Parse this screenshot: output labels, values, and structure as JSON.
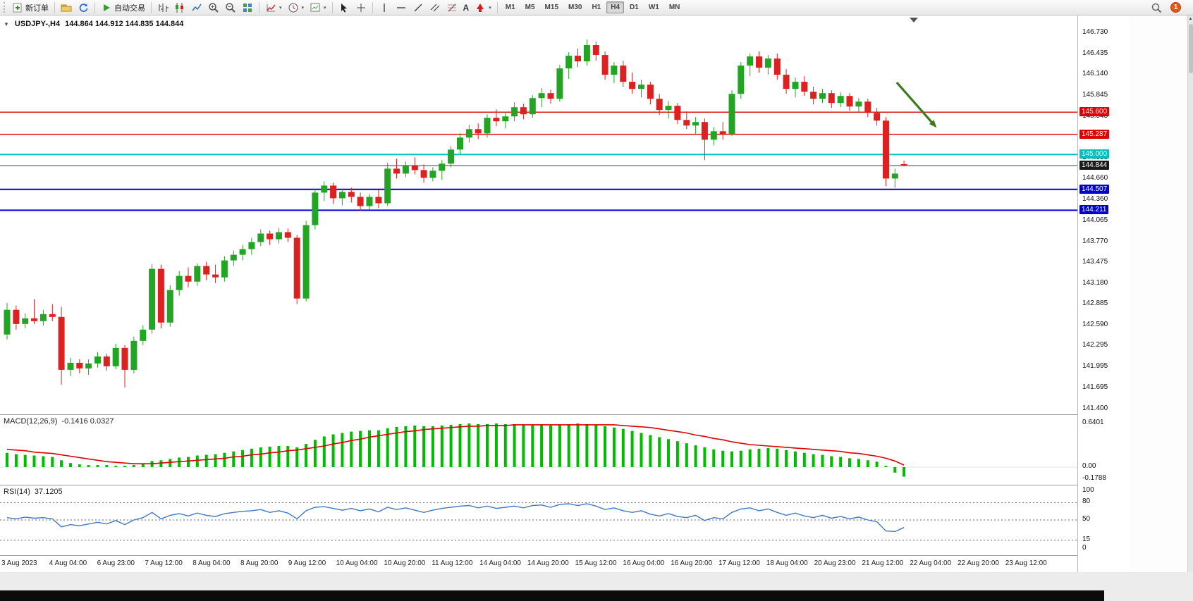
{
  "toolbar": {
    "items": [
      {
        "type": "button",
        "name": "new-order-button",
        "icon": "new-order-icon",
        "label": "新订单"
      },
      {
        "type": "separator"
      },
      {
        "type": "button",
        "name": "charts-profile-button",
        "icon": "profile-icon"
      },
      {
        "type": "button",
        "name": "refresh-button",
        "icon": "refresh-icon"
      },
      {
        "type": "separator"
      },
      {
        "type": "button",
        "name": "autotrading-button",
        "icon": "autotrading-icon",
        "label": "自动交易"
      },
      {
        "type": "separator"
      },
      {
        "type": "button",
        "name": "bar-chart-button",
        "icon": "bar-chart-icon"
      },
      {
        "type": "button",
        "name": "candlestick-chart-button",
        "icon": "candlestick-icon"
      },
      {
        "type": "button",
        "name": "line-chart-button",
        "icon": "line-chart-icon"
      },
      {
        "type": "button",
        "name": "zoom-in-button",
        "icon": "zoom-in-icon"
      },
      {
        "type": "button",
        "name": "zoom-out-button",
        "icon": "zoom-out-icon"
      },
      {
        "type": "button",
        "name": "tile-windows-button",
        "icon": "tile-windows-icon"
      },
      {
        "type": "separator"
      },
      {
        "type": "button",
        "name": "indicators-button",
        "icon": "indicators-icon",
        "dropdown": true
      },
      {
        "type": "button",
        "name": "periods-button",
        "icon": "clock-icon",
        "dropdown": true
      },
      {
        "type": "button",
        "name": "templates-button",
        "icon": "template-icon",
        "dropdown": true
      },
      {
        "type": "separator"
      },
      {
        "type": "button",
        "name": "cursor-button",
        "icon": "cursor-icon"
      },
      {
        "type": "button",
        "name": "crosshair-button",
        "icon": "crosshair-icon"
      },
      {
        "type": "separator"
      },
      {
        "type": "button",
        "name": "vertical-line-button",
        "icon": "vline-icon"
      },
      {
        "type": "button",
        "name": "horizontal-line-button",
        "icon": "hline-icon"
      },
      {
        "type": "button",
        "name": "trendline-button",
        "icon": "trendline-icon"
      },
      {
        "type": "button",
        "name": "channel-button",
        "icon": "channel-icon"
      },
      {
        "type": "button",
        "name": "fibonacci-button",
        "icon": "fibonacci-icon"
      },
      {
        "type": "button",
        "name": "text-button",
        "icon": "text-icon"
      },
      {
        "type": "button",
        "name": "arrows-button",
        "icon": "arrow-tool-icon",
        "dropdown": true
      },
      {
        "type": "separator"
      }
    ],
    "timeframes": [
      "M1",
      "M5",
      "M15",
      "M30",
      "H1",
      "H4",
      "D1",
      "W1",
      "MN"
    ],
    "active_timeframe": "H4",
    "notification_count": "1"
  },
  "chart": {
    "symbol_period": "USDJPY-,H4",
    "ohlc": "144.864 144.912 144.835 144.844"
  },
  "chart_data": {
    "type": "candlestick",
    "symbol": "USDJPY-",
    "timeframe": "H4",
    "colors": {
      "bull": "#22a522",
      "bear": "#dd2020",
      "background": "#ffffff"
    },
    "price_range": {
      "min": 141.4,
      "max": 146.73
    },
    "y_axis_labels": [
      "146.730",
      "146.435",
      "146.140",
      "145.845",
      "145.545",
      "145.250",
      "144.955",
      "144.660",
      "144.360",
      "144.065",
      "143.770",
      "143.475",
      "143.180",
      "142.885",
      "142.590",
      "142.295",
      "141.995",
      "141.695",
      "141.400"
    ],
    "x_axis_labels": [
      "3 Aug 2023",
      "4 Aug 04:00",
      "6 Aug 23:00",
      "7 Aug 12:00",
      "8 Aug 04:00",
      "8 Aug 20:00",
      "9 Aug 12:00",
      "10 Aug 04:00",
      "10 Aug 20:00",
      "11 Aug 12:00",
      "14 Aug 04:00",
      "14 Aug 20:00",
      "15 Aug 12:00",
      "16 Aug 04:00",
      "16 Aug 20:00",
      "17 Aug 12:00",
      "18 Aug 04:00",
      "20 Aug 23:00",
      "21 Aug 12:00",
      "22 Aug 04:00",
      "22 Aug 20:00",
      "23 Aug 12:00"
    ],
    "candles": [
      [
        142.45,
        142.9,
        142.38,
        142.8
      ],
      [
        142.8,
        142.86,
        142.52,
        142.6
      ],
      [
        142.6,
        142.75,
        142.54,
        142.68
      ],
      [
        142.68,
        142.95,
        142.6,
        142.64
      ],
      [
        142.64,
        142.8,
        142.58,
        142.74
      ],
      [
        142.74,
        142.88,
        142.64,
        142.7
      ],
      [
        142.7,
        142.84,
        141.74,
        141.95
      ],
      [
        141.95,
        142.12,
        141.86,
        142.05
      ],
      [
        142.05,
        142.1,
        141.9,
        141.97
      ],
      [
        141.97,
        142.1,
        141.88,
        142.04
      ],
      [
        142.04,
        142.2,
        141.98,
        142.14
      ],
      [
        142.14,
        142.18,
        141.94,
        142.0
      ],
      [
        142.0,
        142.32,
        141.96,
        142.26
      ],
      [
        142.26,
        142.3,
        141.7,
        141.95
      ],
      [
        141.95,
        142.42,
        141.9,
        142.36
      ],
      [
        142.36,
        142.58,
        142.3,
        142.52
      ],
      [
        142.52,
        143.45,
        142.46,
        143.38
      ],
      [
        143.38,
        143.44,
        142.54,
        142.62
      ],
      [
        142.62,
        143.15,
        142.56,
        143.08
      ],
      [
        143.08,
        143.35,
        143.0,
        143.28
      ],
      [
        143.28,
        143.4,
        143.12,
        143.2
      ],
      [
        143.2,
        143.46,
        143.14,
        143.42
      ],
      [
        143.42,
        143.48,
        143.22,
        143.3
      ],
      [
        143.3,
        143.44,
        143.18,
        143.26
      ],
      [
        143.26,
        143.56,
        143.2,
        143.5
      ],
      [
        143.5,
        143.64,
        143.42,
        143.58
      ],
      [
        143.58,
        143.72,
        143.5,
        143.66
      ],
      [
        143.66,
        143.82,
        143.58,
        143.76
      ],
      [
        143.76,
        143.94,
        143.7,
        143.88
      ],
      [
        143.88,
        143.92,
        143.72,
        143.8
      ],
      [
        143.8,
        143.96,
        143.74,
        143.9
      ],
      [
        143.9,
        143.95,
        143.76,
        143.82
      ],
      [
        143.82,
        143.86,
        142.88,
        142.96
      ],
      [
        142.96,
        144.06,
        142.92,
        144.0
      ],
      [
        144.0,
        144.52,
        143.94,
        144.46
      ],
      [
        144.46,
        144.62,
        144.34,
        144.56
      ],
      [
        144.56,
        144.6,
        144.3,
        144.38
      ],
      [
        144.38,
        144.52,
        144.28,
        144.47
      ],
      [
        144.47,
        144.53,
        144.32,
        144.4
      ],
      [
        144.4,
        144.46,
        144.2,
        144.27
      ],
      [
        144.27,
        144.44,
        144.22,
        144.4
      ],
      [
        144.4,
        144.5,
        144.24,
        144.31
      ],
      [
        144.31,
        144.88,
        144.27,
        144.8
      ],
      [
        144.8,
        144.94,
        144.66,
        144.73
      ],
      [
        144.73,
        144.9,
        144.68,
        144.84
      ],
      [
        144.84,
        144.96,
        144.72,
        144.78
      ],
      [
        144.78,
        144.86,
        144.6,
        144.67
      ],
      [
        144.67,
        144.82,
        144.62,
        144.77
      ],
      [
        144.77,
        144.92,
        144.64,
        144.87
      ],
      [
        144.87,
        145.12,
        144.82,
        145.07
      ],
      [
        145.07,
        145.3,
        145.0,
        145.24
      ],
      [
        145.24,
        145.42,
        145.17,
        145.36
      ],
      [
        145.36,
        145.44,
        145.22,
        145.3
      ],
      [
        145.3,
        145.57,
        145.24,
        145.52
      ],
      [
        145.52,
        145.64,
        145.4,
        145.47
      ],
      [
        145.47,
        145.6,
        145.37,
        145.54
      ],
      [
        145.54,
        145.74,
        145.47,
        145.67
      ],
      [
        145.67,
        145.72,
        145.5,
        145.57
      ],
      [
        145.57,
        145.84,
        145.52,
        145.8
      ],
      [
        145.8,
        145.94,
        145.67,
        145.87
      ],
      [
        145.87,
        145.92,
        145.72,
        145.79
      ],
      [
        145.79,
        146.27,
        145.75,
        146.22
      ],
      [
        146.22,
        146.45,
        146.07,
        146.4
      ],
      [
        146.4,
        146.5,
        146.24,
        146.32
      ],
      [
        146.32,
        146.63,
        146.26,
        146.55
      ],
      [
        146.55,
        146.6,
        146.33,
        146.41
      ],
      [
        146.41,
        146.46,
        146.06,
        146.13
      ],
      [
        146.13,
        146.31,
        146.01,
        146.26
      ],
      [
        146.26,
        146.33,
        145.96,
        146.03
      ],
      [
        146.03,
        146.16,
        145.86,
        145.93
      ],
      [
        145.93,
        146.06,
        145.81,
        145.99
      ],
      [
        145.99,
        146.03,
        145.71,
        145.79
      ],
      [
        145.79,
        145.86,
        145.56,
        145.63
      ],
      [
        145.63,
        145.76,
        145.51,
        145.69
      ],
      [
        145.69,
        145.73,
        145.43,
        145.49
      ],
      [
        145.49,
        145.61,
        145.36,
        145.41
      ],
      [
        145.41,
        145.53,
        145.29,
        145.46
      ],
      [
        145.46,
        145.51,
        144.92,
        145.21
      ],
      [
        145.21,
        145.39,
        145.13,
        145.33
      ],
      [
        145.33,
        145.46,
        145.21,
        145.29
      ],
      [
        145.29,
        145.91,
        145.26,
        145.86
      ],
      [
        145.86,
        146.31,
        145.79,
        146.26
      ],
      [
        146.26,
        146.43,
        146.11,
        146.39
      ],
      [
        146.39,
        146.46,
        146.16,
        146.23
      ],
      [
        146.23,
        146.41,
        146.13,
        146.36
      ],
      [
        146.36,
        146.43,
        146.06,
        146.13
      ],
      [
        146.13,
        146.21,
        145.86,
        145.93
      ],
      [
        145.93,
        146.09,
        145.81,
        146.03
      ],
      [
        146.03,
        146.11,
        145.83,
        145.89
      ],
      [
        145.89,
        145.96,
        145.71,
        145.79
      ],
      [
        145.79,
        145.93,
        145.73,
        145.87
      ],
      [
        145.87,
        145.91,
        145.66,
        145.73
      ],
      [
        145.73,
        145.88,
        145.67,
        145.83
      ],
      [
        145.83,
        145.87,
        145.62,
        145.68
      ],
      [
        145.68,
        145.8,
        145.6,
        145.75
      ],
      [
        145.75,
        145.79,
        145.53,
        145.59
      ],
      [
        145.59,
        145.66,
        145.41,
        145.48
      ],
      [
        145.48,
        145.53,
        144.55,
        144.66
      ],
      [
        144.66,
        144.8,
        144.53,
        144.73
      ],
      [
        144.864,
        144.912,
        144.835,
        144.844
      ]
    ],
    "horizontal_lines": [
      {
        "price": 145.6,
        "color": "#dd0000",
        "width": 1.4
      },
      {
        "price": 145.287,
        "color": "#dd0000",
        "width": 1.4
      },
      {
        "price": 145.0,
        "color": "#00bfbf",
        "width": 2
      },
      {
        "price": 144.507,
        "color": "#0000cc",
        "width": 2
      },
      {
        "price": 144.211,
        "color": "#0000cc",
        "width": 2
      }
    ],
    "current_price": {
      "value": 144.844,
      "line_color": "#404040"
    },
    "price_badges": [
      {
        "text": "145.600",
        "price": 145.6,
        "bg": "#dd0000",
        "fg": "#ffffff"
      },
      {
        "text": "145.287",
        "price": 145.287,
        "bg": "#dd0000",
        "fg": "#ffffff"
      },
      {
        "text": "145.000",
        "price": 145.0,
        "bg": "#00bfbf",
        "fg": "#ffffff"
      },
      {
        "text": "144.844",
        "price": 144.844,
        "bg": "#1a1a1a",
        "fg": "#ffffff"
      },
      {
        "text": "144.507",
        "price": 144.507,
        "bg": "#0000cc",
        "fg": "#ffffff"
      },
      {
        "text": "144.211",
        "price": 144.211,
        "bg": "#0000cc",
        "fg": "#ffffff"
      }
    ],
    "annotations": [
      {
        "type": "arrow",
        "color": "#3c7a1e",
        "from_index": 98.2,
        "from_price": 146.02,
        "to_index": 102.6,
        "to_price": 145.38
      }
    ],
    "indicators": {
      "macd": {
        "label": "MACD(12,26,9)",
        "values_display": "-0.1416 0.0327",
        "histogram_color": "#00bb00",
        "signal_color": "#dd0000",
        "scale_labels": [
          "0.6401",
          "0.00",
          "-0.1788"
        ],
        "histogram": [
          0.21,
          0.19,
          0.18,
          0.17,
          0.16,
          0.15,
          0.1,
          0.06,
          0.04,
          0.03,
          0.03,
          0.03,
          0.02,
          0.02,
          0.03,
          0.05,
          0.09,
          0.1,
          0.12,
          0.14,
          0.15,
          0.17,
          0.18,
          0.19,
          0.21,
          0.23,
          0.25,
          0.27,
          0.29,
          0.3,
          0.31,
          0.31,
          0.29,
          0.34,
          0.4,
          0.45,
          0.48,
          0.5,
          0.52,
          0.53,
          0.54,
          0.54,
          0.57,
          0.59,
          0.6,
          0.61,
          0.6,
          0.6,
          0.61,
          0.62,
          0.63,
          0.64,
          0.63,
          0.63,
          0.64,
          0.63,
          0.63,
          0.62,
          0.62,
          0.62,
          0.61,
          0.62,
          0.63,
          0.64,
          0.63,
          0.62,
          0.6,
          0.58,
          0.56,
          0.53,
          0.5,
          0.47,
          0.44,
          0.41,
          0.38,
          0.35,
          0.32,
          0.29,
          0.26,
          0.24,
          0.23,
          0.24,
          0.26,
          0.27,
          0.28,
          0.27,
          0.25,
          0.23,
          0.21,
          0.19,
          0.18,
          0.16,
          0.15,
          0.13,
          0.12,
          0.1,
          0.08,
          0.02,
          -0.08,
          -0.14
        ],
        "signal": [
          0.26,
          0.25,
          0.24,
          0.22,
          0.21,
          0.2,
          0.18,
          0.16,
          0.14,
          0.12,
          0.1,
          0.08,
          0.07,
          0.06,
          0.05,
          0.05,
          0.05,
          0.06,
          0.07,
          0.08,
          0.09,
          0.1,
          0.11,
          0.12,
          0.13,
          0.15,
          0.16,
          0.18,
          0.19,
          0.21,
          0.22,
          0.24,
          0.25,
          0.27,
          0.29,
          0.31,
          0.34,
          0.36,
          0.39,
          0.41,
          0.44,
          0.46,
          0.48,
          0.5,
          0.52,
          0.53,
          0.55,
          0.56,
          0.57,
          0.58,
          0.59,
          0.6,
          0.6,
          0.61,
          0.61,
          0.61,
          0.62,
          0.62,
          0.62,
          0.62,
          0.62,
          0.62,
          0.62,
          0.62,
          0.62,
          0.62,
          0.62,
          0.62,
          0.61,
          0.6,
          0.59,
          0.58,
          0.56,
          0.54,
          0.52,
          0.5,
          0.47,
          0.45,
          0.42,
          0.4,
          0.37,
          0.35,
          0.33,
          0.32,
          0.31,
          0.3,
          0.29,
          0.28,
          0.27,
          0.26,
          0.25,
          0.24,
          0.23,
          0.21,
          0.2,
          0.18,
          0.16,
          0.13,
          0.09,
          0.03
        ]
      },
      "rsi": {
        "label": "RSI(14)",
        "value_display": "37.1205",
        "line_color": "#4079c0",
        "levels": [
          80,
          50,
          15
        ],
        "scale_labels": [
          "100",
          "80",
          "50",
          "15",
          "0"
        ],
        "values": [
          54,
          52,
          55,
          53,
          54,
          52,
          38,
          42,
          40,
          43,
          46,
          43,
          49,
          42,
          50,
          54,
          63,
          52,
          58,
          61,
          57,
          62,
          58,
          56,
          61,
          63,
          65,
          66,
          68,
          63,
          66,
          62,
          52,
          66,
          72,
          73,
          70,
          67,
          70,
          66,
          69,
          64,
          72,
          68,
          71,
          67,
          63,
          67,
          70,
          72,
          74,
          75,
          71,
          74,
          70,
          72,
          74,
          71,
          75,
          76,
          72,
          77,
          78,
          75,
          78,
          74,
          68,
          71,
          66,
          63,
          66,
          60,
          57,
          61,
          56,
          54,
          58,
          49,
          54,
          52,
          63,
          69,
          71,
          66,
          69,
          63,
          58,
          62,
          57,
          54,
          58,
          53,
          56,
          52,
          55,
          50,
          47,
          31,
          30,
          37
        ]
      }
    }
  }
}
